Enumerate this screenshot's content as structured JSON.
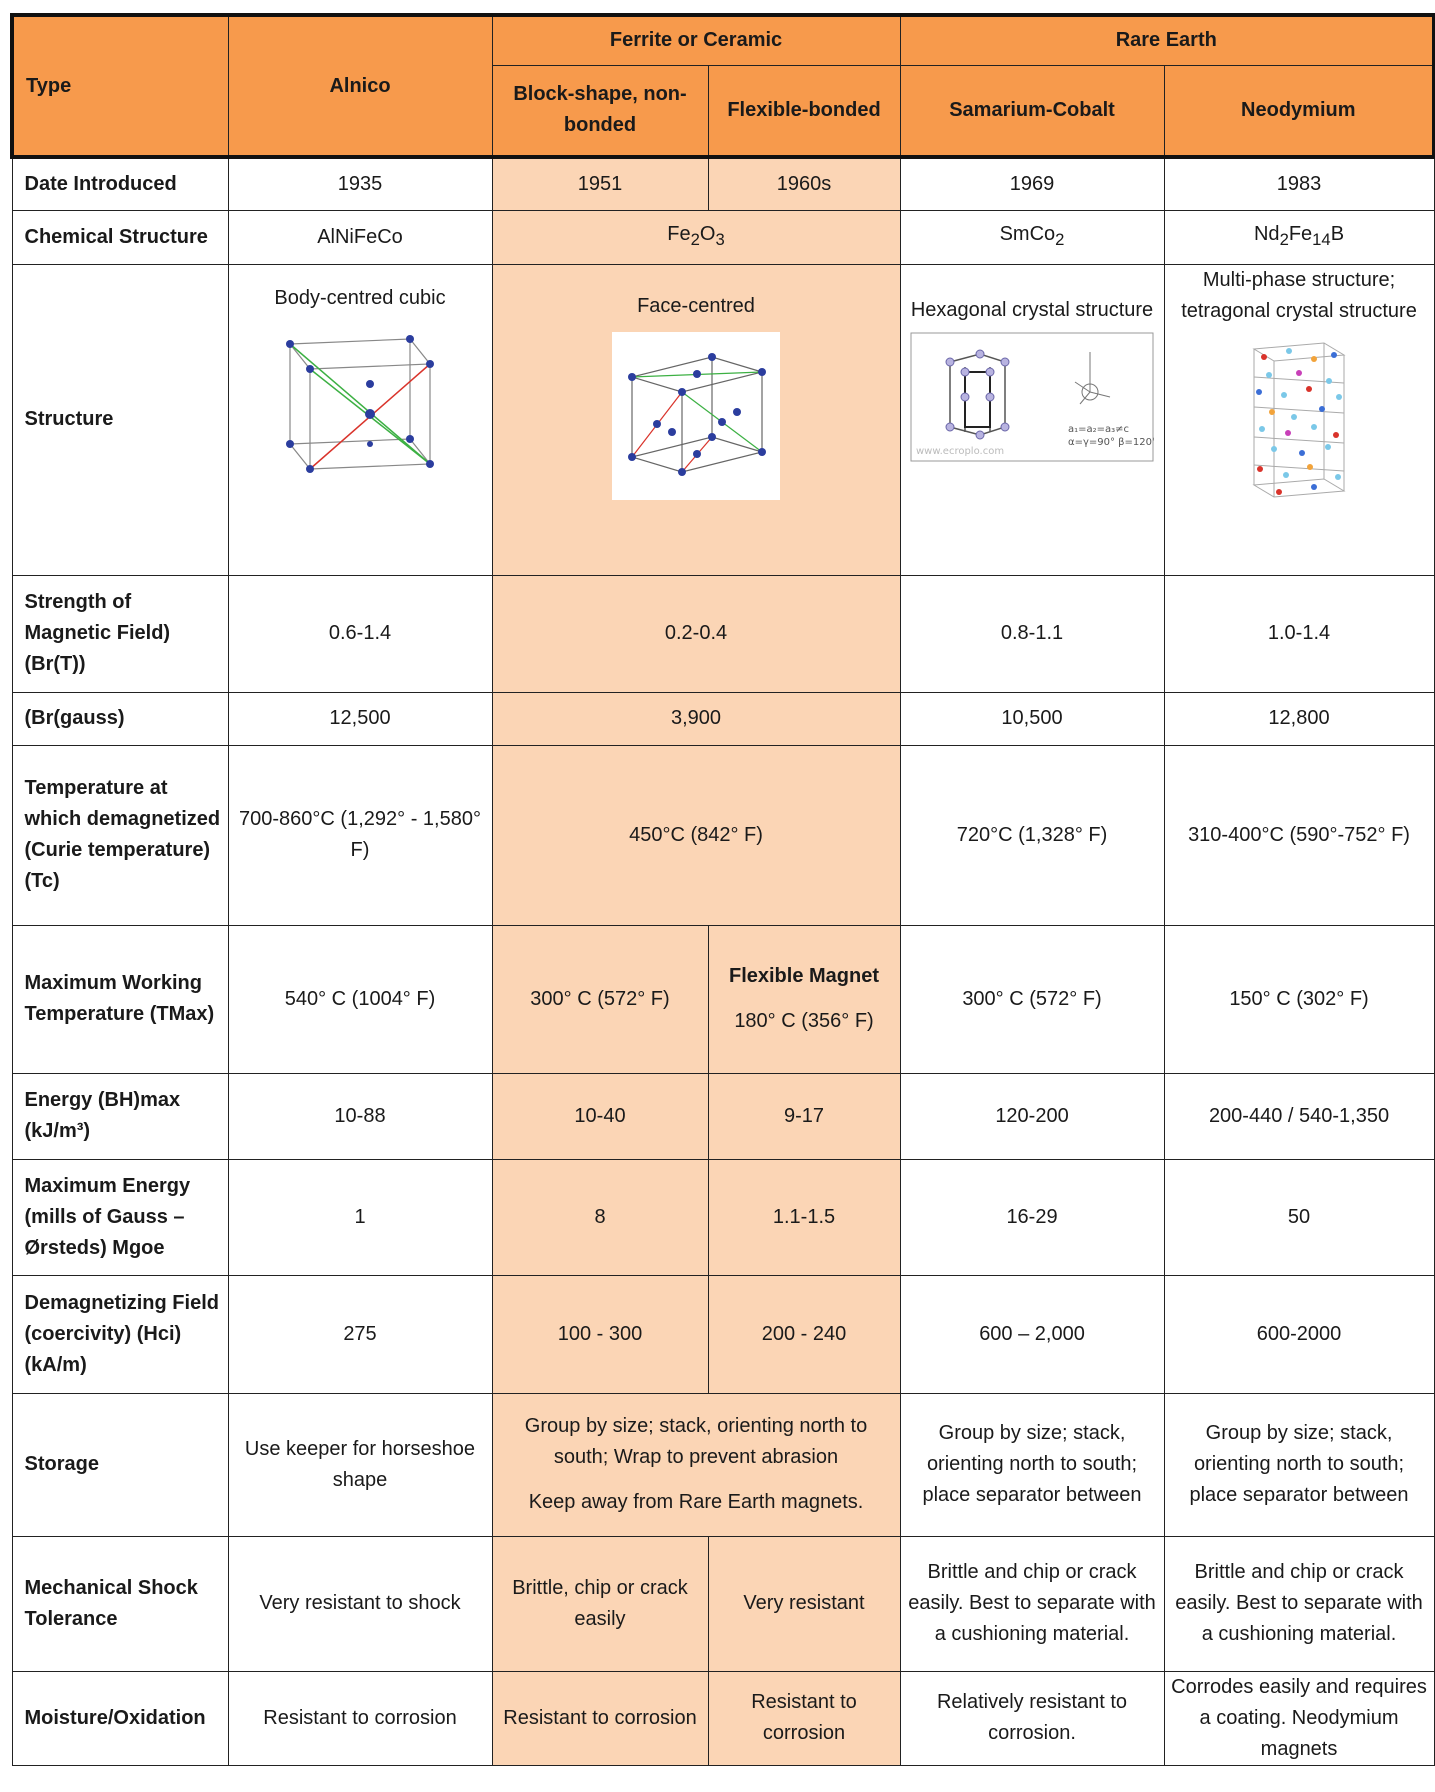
{
  "header": {
    "type": "Type",
    "alnico": "Alnico",
    "ferrite_group": "Ferrite or Ceramic",
    "rare_earth_group": "Rare Earth",
    "block": "Block-shape, non-bonded",
    "flexible": "Flexible-bonded",
    "samarium": "Samarium-Cobalt",
    "neodymium": "Neodymium"
  },
  "rows": {
    "date": {
      "label": "Date Introduced",
      "alnico": "1935",
      "block": "1951",
      "flexible": "1960s",
      "samarium": "1969",
      "neodymium": "1983"
    },
    "chem": {
      "label": "Chemical Structure",
      "alnico": "AlNiFeCo",
      "ferrite_base": "Fe",
      "ferrite_sub1": "2",
      "ferrite_mid": "O",
      "ferrite_sub2": "3",
      "samarium_base": "SmCo",
      "samarium_sub": "2",
      "neo_a": "Nd",
      "neo_a_sub": "2",
      "neo_b": "Fe",
      "neo_b_sub": "14",
      "neo_c": "B"
    },
    "structure": {
      "label": "Structure",
      "alnico": "Body-centred cubic",
      "ferrite": "Face-centred",
      "samarium": "Hexagonal crystal structure",
      "neodymium": "Multi-phase structure; tetragonal crystal structure",
      "hex_caption1": "a₁=a₂=a₃≠c",
      "hex_caption2": "α=γ=90° β=120°",
      "hex_watermark": "www.ecroplo.com"
    },
    "strength": {
      "label": "Strength of Magnetic Field) (Br(T))",
      "alnico": "0.6-1.4",
      "ferrite": "0.2-0.4",
      "samarium": "0.8-1.1",
      "neodymium": "1.0-1.4"
    },
    "gauss": {
      "label": "(Br(gauss)",
      "alnico": "12,500",
      "ferrite": "3,900",
      "samarium": "10,500",
      "neodymium": "12,800"
    },
    "curie": {
      "label": "Temperature at which demagnetized (Curie temperature) (Tc)",
      "alnico": "700-860°C (1,292° - 1,580° F)",
      "ferrite": "450°C (842° F)",
      "samarium": "720°C (1,328° F)",
      "neodymium": "310-400°C (590°-752° F)"
    },
    "tmax": {
      "label": "Maximum Working Temperature (TMax)",
      "alnico": "540° C (1004° F)",
      "block": "300° C (572° F)",
      "flexible_title": "Flexible Magnet",
      "flexible": "180° C (356° F)",
      "samarium": "300° C (572° F)",
      "neodymium": "150° C (302° F)"
    },
    "energy": {
      "label": "Energy (BH)max (kJ/m³)",
      "alnico": "10-88",
      "block": "10-40",
      "flexible": "9-17",
      "samarium": "120-200",
      "neodymium": "200-440 / 540-1,350"
    },
    "maxenergy": {
      "label": "Maximum Energy (mills of Gauss – Ørsteds) Mgoe",
      "alnico": "1",
      "block": "8",
      "flexible": "1.1-1.5",
      "samarium": "16-29",
      "neodymium": "50"
    },
    "demag": {
      "label": "Demagnetizing Field (coercivity) (Hci) (kA/m)",
      "alnico": "275",
      "block": "100 - 300",
      "flexible": "200 - 240",
      "samarium": "600 – 2,000",
      "neodymium": "600-2000"
    },
    "storage": {
      "label": "Storage",
      "alnico": "Use keeper for horseshoe shape",
      "ferrite": "Group by size; stack, orienting north to south; Wrap to prevent abrasion",
      "ferrite_note": "Keep away from Rare Earth magnets.",
      "samarium": "Group by size; stack, orienting north to south; place separator between",
      "neodymium": "Group by size; stack, orienting north to south; place separator between"
    },
    "shock": {
      "label": "Mechanical Shock Tolerance",
      "alnico": "Very resistant to shock",
      "block": "Brittle, chip or crack easily",
      "flexible": "Very resistant",
      "samarium": "Brittle and chip or crack easily. Best to separate with a cushioning material.",
      "neodymium": "Brittle and chip or crack easily. Best to separate with a cushioning material."
    },
    "moisture": {
      "label": "Moisture/Oxidation",
      "alnico": "Resistant to corrosion",
      "block": "Resistant to corrosion",
      "flexible": "Resistant to corrosion",
      "samarium": "Relatively resistant to corrosion.",
      "neodymium": "Corrodes easily and requires a coating. Neodymium magnets"
    }
  },
  "colors": {
    "header_orange": "#f79a4c",
    "ferrite_peach": "#fbd5b5",
    "border": "#222222"
  }
}
